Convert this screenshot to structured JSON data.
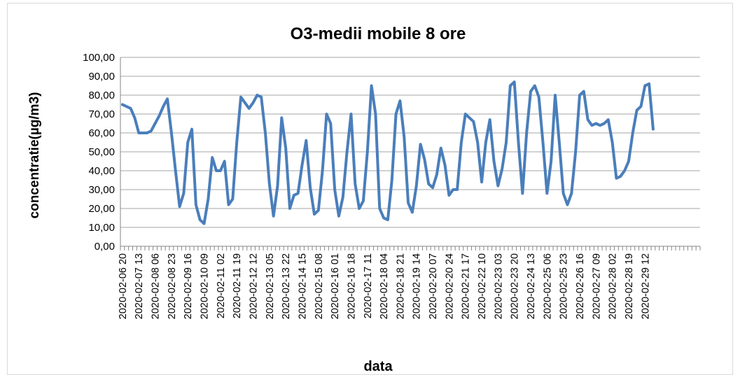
{
  "chart_data": {
    "type": "line",
    "title": "O3-medii mobile 8 ore",
    "xlabel": "data",
    "ylabel": "concentratie(µg/m3)",
    "categories": [
      "2020-02-06 20",
      null,
      null,
      null,
      "2020-02-07 13",
      null,
      null,
      null,
      "2020-02-08 06",
      null,
      null,
      null,
      "2020-02-08 23",
      null,
      null,
      null,
      "2020-02-09 16",
      null,
      null,
      null,
      "2020-02-10 09",
      null,
      null,
      null,
      "2020-02-11 02",
      null,
      null,
      null,
      "2020-02-11 19",
      null,
      null,
      null,
      "2020-02-12 12",
      null,
      null,
      null,
      "2020-02-13 05",
      null,
      null,
      null,
      "2020-02-13 22",
      null,
      null,
      null,
      "2020-02-14 15",
      null,
      null,
      null,
      "2020-02-15 08",
      null,
      null,
      null,
      "2020-02-16 01",
      null,
      null,
      null,
      "2020-02-16 18",
      null,
      null,
      null,
      "2020-02-17 11",
      null,
      null,
      null,
      "2020-02-18 04",
      null,
      null,
      null,
      "2020-02-18 21",
      null,
      null,
      null,
      "2020-02-19 14",
      null,
      null,
      null,
      "2020-02-20 07",
      null,
      null,
      null,
      "2020-02-20 24",
      null,
      null,
      null,
      "2020-02-21 17",
      null,
      null,
      null,
      "2020-02-22 10",
      null,
      null,
      null,
      "2020-02-23 03",
      null,
      null,
      null,
      "2020-02-23 20",
      null,
      null,
      null,
      "2020-02-24 13",
      null,
      null,
      null,
      "2020-02-25 06",
      null,
      null,
      null,
      "2020-02-25 23",
      null,
      null,
      null,
      "2020-02-26 16",
      null,
      null,
      null,
      "2020-02-27 09",
      null,
      null,
      null,
      "2020-02-28 02",
      null,
      null,
      null,
      "2020-02-28 19",
      null,
      null,
      null,
      "2020-02-29 12",
      null,
      null,
      null,
      null,
      null,
      null,
      null,
      null,
      null,
      null,
      null,
      null,
      null
    ],
    "series": [
      {
        "name": "O3",
        "color": "#4a7ebb",
        "values": [
          75,
          74,
          73,
          68,
          60,
          60,
          60,
          61,
          65,
          69,
          74,
          78,
          60,
          40,
          21,
          28,
          55,
          62,
          22,
          14,
          12,
          25,
          47,
          40,
          40,
          45,
          22,
          25,
          55,
          79,
          76,
          73,
          76,
          80,
          79,
          60,
          33,
          16,
          32,
          68,
          52,
          20,
          27,
          28,
          43,
          56,
          31,
          17,
          19,
          40,
          70,
          65,
          30,
          16,
          26,
          50,
          70,
          33,
          20,
          24,
          50,
          85,
          70,
          20,
          15,
          14,
          35,
          70,
          77,
          58,
          23,
          18,
          32,
          54,
          46,
          33,
          31,
          38,
          52,
          43,
          27,
          30,
          30,
          55,
          70,
          68,
          66,
          55,
          34,
          55,
          67,
          45,
          32,
          41,
          55,
          85,
          87,
          55,
          28,
          60,
          82,
          85,
          79,
          55,
          28,
          45,
          80,
          55,
          28,
          22,
          28,
          50,
          80,
          82,
          67,
          64,
          65,
          64,
          65,
          67,
          55,
          36,
          37,
          40,
          45,
          60,
          72,
          74,
          85,
          86,
          62,
          null,
          null,
          null,
          null,
          null,
          null,
          null,
          null,
          null,
          null,
          null
        ]
      }
    ],
    "ylim": [
      0,
      100
    ],
    "yticks": [
      {
        "value": 0,
        "label": "0,00"
      },
      {
        "value": 10,
        "label": "10,00"
      },
      {
        "value": 20,
        "label": "20,00"
      },
      {
        "value": 30,
        "label": "30,00"
      },
      {
        "value": 40,
        "label": "40,00"
      },
      {
        "value": 50,
        "label": "50,00"
      },
      {
        "value": 60,
        "label": "60,00"
      },
      {
        "value": 70,
        "label": "70,00"
      },
      {
        "value": 80,
        "label": "80,00"
      },
      {
        "value": 90,
        "label": "90,00"
      },
      {
        "value": 100,
        "label": "100,00"
      }
    ],
    "grid": true
  }
}
